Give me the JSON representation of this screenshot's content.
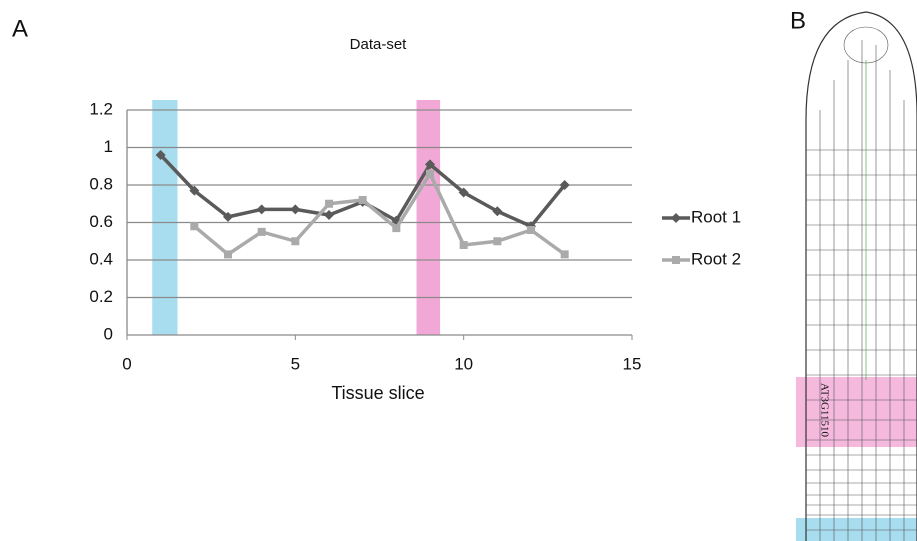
{
  "panel_labels": [
    "A",
    "B"
  ],
  "root_label": "AT3G11510",
  "chart_data": {
    "type": "line",
    "title": "Data-set",
    "x_label": "Tissue slice",
    "x": [
      1,
      2,
      3,
      4,
      5,
      6,
      7,
      8,
      9,
      10,
      11,
      12,
      13
    ],
    "series": [
      {
        "name": "Root 1",
        "color": "#5a5a5a",
        "marker": "diamond",
        "values": [
          0.96,
          0.77,
          0.63,
          0.67,
          0.67,
          0.64,
          0.71,
          0.61,
          0.91,
          0.76,
          0.66,
          0.58,
          0.8
        ]
      },
      {
        "name": "Root 2",
        "color": "#aaaaaa",
        "marker": "square",
        "values": [
          null,
          0.58,
          0.43,
          0.55,
          0.5,
          0.7,
          0.72,
          0.57,
          0.86,
          0.48,
          0.5,
          0.56,
          0.43
        ]
      }
    ],
    "bands": [
      {
        "range": [
          0.75,
          1.5
        ],
        "color": "#a8dcef"
      },
      {
        "range": [
          8.6,
          9.3
        ],
        "color": "#f2a8d6"
      }
    ],
    "xlim": [
      0,
      15
    ],
    "xticks": [
      0,
      5,
      10,
      15
    ],
    "ylim": [
      0,
      1.2
    ],
    "yticks": [
      0,
      0.2,
      0.4,
      0.6,
      0.8,
      1,
      1.2
    ],
    "grid": true,
    "legend": "right"
  }
}
